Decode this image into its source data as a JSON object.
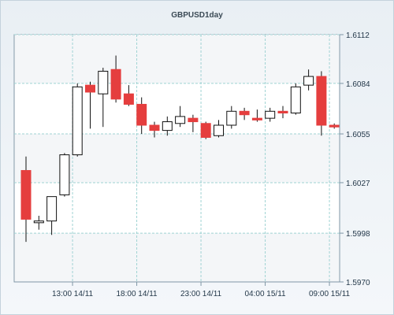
{
  "chart_data": {
    "type": "candlestick",
    "title": "GBPUSD1day",
    "x_tick_labels": [
      "13:00 14/11",
      "18:00 14/11",
      "23:00 14/11",
      "04:00 15/11",
      "09:00 15/11"
    ],
    "y_ticks": [
      1.597,
      1.5998,
      1.6027,
      1.6055,
      1.6084,
      1.6112
    ],
    "ylim": [
      1.597,
      1.6112
    ],
    "y_axis_side": "right",
    "grid": true,
    "colors": {
      "up": "#ffffff",
      "down": "#e53e3e",
      "outline": "#111111",
      "grid": "#9fd3d3"
    },
    "candles": [
      {
        "open": 1.6034,
        "high": 1.6042,
        "low": 1.5993,
        "close": 1.6006
      },
      {
        "open": 1.6004,
        "high": 1.6008,
        "low": 1.6,
        "close": 1.6005
      },
      {
        "open": 1.6005,
        "high": 1.6019,
        "low": 1.5997,
        "close": 1.6019
      },
      {
        "open": 1.602,
        "high": 1.6044,
        "low": 1.6019,
        "close": 1.6043
      },
      {
        "open": 1.6043,
        "high": 1.6084,
        "low": 1.6042,
        "close": 1.6082
      },
      {
        "open": 1.6083,
        "high": 1.6085,
        "low": 1.6058,
        "close": 1.6079
      },
      {
        "open": 1.6078,
        "high": 1.6093,
        "low": 1.6059,
        "close": 1.6091
      },
      {
        "open": 1.6092,
        "high": 1.61,
        "low": 1.6073,
        "close": 1.6075
      },
      {
        "open": 1.6078,
        "high": 1.6083,
        "low": 1.6071,
        "close": 1.6072
      },
      {
        "open": 1.6072,
        "high": 1.6076,
        "low": 1.6055,
        "close": 1.606
      },
      {
        "open": 1.606,
        "high": 1.6062,
        "low": 1.6053,
        "close": 1.6057
      },
      {
        "open": 1.6057,
        "high": 1.6065,
        "low": 1.6054,
        "close": 1.6062
      },
      {
        "open": 1.6061,
        "high": 1.6071,
        "low": 1.6059,
        "close": 1.6065
      },
      {
        "open": 1.6064,
        "high": 1.6066,
        "low": 1.6056,
        "close": 1.6062
      },
      {
        "open": 1.6061,
        "high": 1.6062,
        "low": 1.6052,
        "close": 1.6053
      },
      {
        "open": 1.6054,
        "high": 1.6063,
        "low": 1.6053,
        "close": 1.606
      },
      {
        "open": 1.606,
        "high": 1.6071,
        "low": 1.6058,
        "close": 1.6068
      },
      {
        "open": 1.6068,
        "high": 1.607,
        "low": 1.6063,
        "close": 1.6066
      },
      {
        "open": 1.6064,
        "high": 1.6069,
        "low": 1.6062,
        "close": 1.6063
      },
      {
        "open": 1.6064,
        "high": 1.607,
        "low": 1.6062,
        "close": 1.6068
      },
      {
        "open": 1.6068,
        "high": 1.6071,
        "low": 1.6064,
        "close": 1.6067
      },
      {
        "open": 1.6067,
        "high": 1.6084,
        "low": 1.6066,
        "close": 1.6082
      },
      {
        "open": 1.6083,
        "high": 1.6092,
        "low": 1.608,
        "close": 1.6088
      },
      {
        "open": 1.6088,
        "high": 1.6091,
        "low": 1.6054,
        "close": 1.606
      },
      {
        "open": 1.606,
        "high": 1.6061,
        "low": 1.6058,
        "close": 1.6059
      }
    ]
  }
}
